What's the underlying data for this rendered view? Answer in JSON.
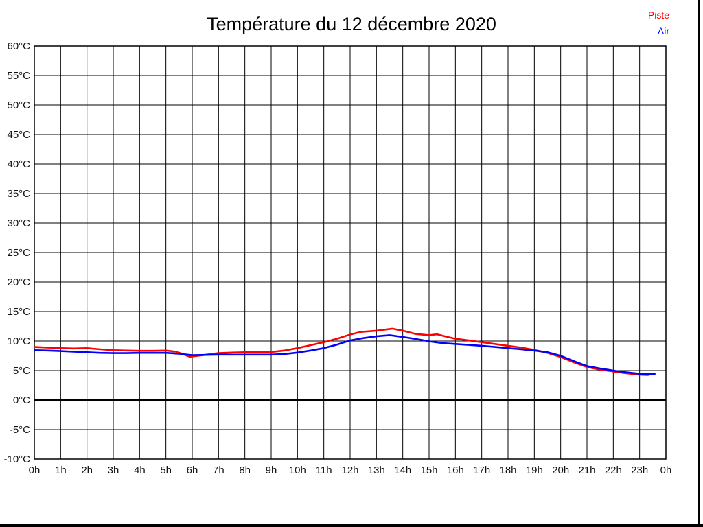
{
  "chart_data": {
    "type": "line",
    "title": "Température du 12 décembre 2020",
    "grid": true,
    "legend_position": "top-right",
    "xlim": [
      0,
      24
    ],
    "ylim": [
      -10,
      60
    ],
    "x_tick_step_hours": 1,
    "y_tick_step_degrees": 5,
    "x_ticks": [
      "0h",
      "1h",
      "2h",
      "3h",
      "4h",
      "5h",
      "6h",
      "7h",
      "8h",
      "9h",
      "10h",
      "11h",
      "12h",
      "13h",
      "14h",
      "15h",
      "16h",
      "17h",
      "18h",
      "19h",
      "20h",
      "21h",
      "22h",
      "23h",
      "0h"
    ],
    "y_ticks": [
      "60°C",
      "55°C",
      "50°C",
      "45°C",
      "40°C",
      "35°C",
      "30°C",
      "25°C",
      "20°C",
      "15°C",
      "10°C",
      "5°C",
      "0°C",
      "-5°C",
      "-10°C"
    ],
    "y_tick_values": [
      60,
      55,
      50,
      45,
      40,
      35,
      30,
      25,
      20,
      15,
      10,
      5,
      0,
      -5,
      -10
    ],
    "zero_line": {
      "value": 0,
      "color": "#000000"
    },
    "grid_color": "#000000",
    "series": [
      {
        "name": "Piste",
        "color": "#ff0000",
        "points": [
          [
            0,
            9.0
          ],
          [
            0.5,
            8.9
          ],
          [
            1,
            8.8
          ],
          [
            1.5,
            8.75
          ],
          [
            2,
            8.8
          ],
          [
            2.5,
            8.6
          ],
          [
            3,
            8.45
          ],
          [
            3.5,
            8.4
          ],
          [
            4,
            8.35
          ],
          [
            4.5,
            8.35
          ],
          [
            5,
            8.4
          ],
          [
            5.4,
            8.2
          ],
          [
            5.9,
            7.35
          ],
          [
            6.4,
            7.6
          ],
          [
            7,
            7.95
          ],
          [
            7.5,
            8.05
          ],
          [
            8,
            8.1
          ],
          [
            9,
            8.15
          ],
          [
            9.5,
            8.4
          ],
          [
            10,
            8.8
          ],
          [
            10.5,
            9.3
          ],
          [
            11,
            9.8
          ],
          [
            11.5,
            10.4
          ],
          [
            12,
            11.1
          ],
          [
            12.4,
            11.55
          ],
          [
            13,
            11.75
          ],
          [
            13.6,
            12.1
          ],
          [
            14,
            11.75
          ],
          [
            14.5,
            11.2
          ],
          [
            15,
            11.0
          ],
          [
            15.3,
            11.15
          ],
          [
            15.7,
            10.7
          ],
          [
            16,
            10.4
          ],
          [
            16.5,
            10.1
          ],
          [
            17,
            9.8
          ],
          [
            17.5,
            9.5
          ],
          [
            18,
            9.2
          ],
          [
            18.5,
            8.9
          ],
          [
            19,
            8.5
          ],
          [
            19.5,
            8.0
          ],
          [
            20,
            7.3
          ],
          [
            20.5,
            6.4
          ],
          [
            21,
            5.6
          ],
          [
            21.5,
            5.15
          ],
          [
            22,
            4.85
          ],
          [
            22.5,
            4.55
          ],
          [
            23,
            4.3
          ],
          [
            23.3,
            4.25
          ],
          [
            23.6,
            4.5
          ]
        ]
      },
      {
        "name": "Air",
        "color": "#0000ff",
        "points": [
          [
            0,
            8.45
          ],
          [
            0.5,
            8.4
          ],
          [
            1,
            8.3
          ],
          [
            1.5,
            8.2
          ],
          [
            2,
            8.1
          ],
          [
            2.5,
            8.0
          ],
          [
            3,
            7.95
          ],
          [
            3.5,
            7.95
          ],
          [
            4,
            8.0
          ],
          [
            4.5,
            8.0
          ],
          [
            5,
            8.0
          ],
          [
            5.5,
            7.85
          ],
          [
            6,
            7.6
          ],
          [
            6.5,
            7.65
          ],
          [
            7,
            7.7
          ],
          [
            8,
            7.7
          ],
          [
            9,
            7.7
          ],
          [
            9.5,
            7.8
          ],
          [
            10,
            8.05
          ],
          [
            10.5,
            8.4
          ],
          [
            11,
            8.8
          ],
          [
            11.5,
            9.4
          ],
          [
            12,
            10.1
          ],
          [
            12.5,
            10.5
          ],
          [
            13,
            10.8
          ],
          [
            13.5,
            11.0
          ],
          [
            14,
            10.7
          ],
          [
            14.5,
            10.35
          ],
          [
            15,
            9.95
          ],
          [
            15.5,
            9.65
          ],
          [
            16,
            9.5
          ],
          [
            16.5,
            9.35
          ],
          [
            17,
            9.2
          ],
          [
            17.5,
            9.0
          ],
          [
            18,
            8.8
          ],
          [
            18.5,
            8.6
          ],
          [
            19,
            8.4
          ],
          [
            19.5,
            8.1
          ],
          [
            20,
            7.5
          ],
          [
            20.5,
            6.6
          ],
          [
            21,
            5.75
          ],
          [
            21.5,
            5.35
          ],
          [
            22,
            5.0
          ],
          [
            22.5,
            4.7
          ],
          [
            23,
            4.45
          ],
          [
            23.6,
            4.4
          ]
        ]
      }
    ]
  }
}
